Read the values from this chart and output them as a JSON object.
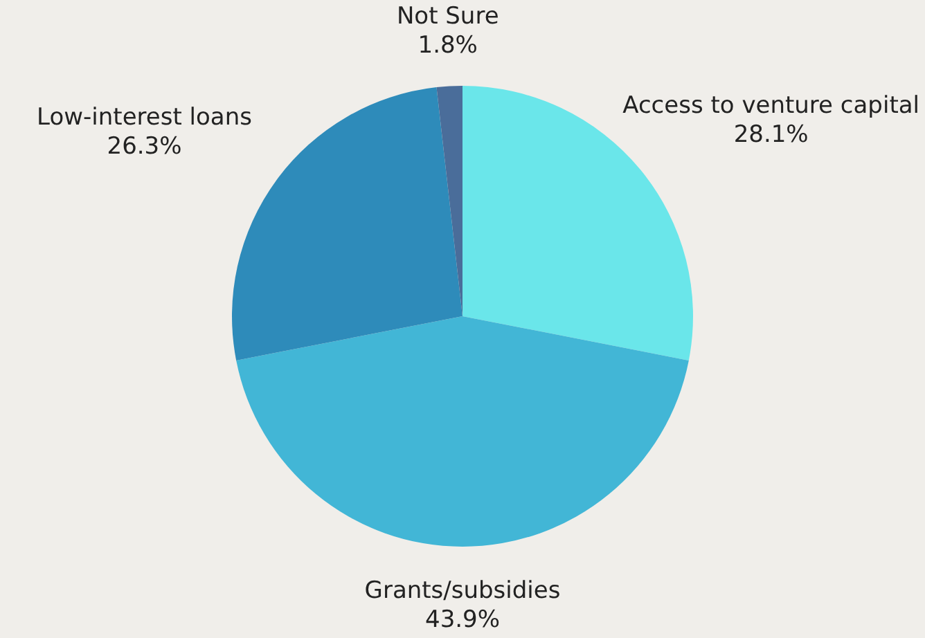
{
  "chart_data": {
    "type": "pie",
    "categories": [
      "Access to venture capital",
      "Grants/subsidies",
      "Low-interest loans",
      "Not Sure"
    ],
    "values": [
      28.1,
      43.9,
      26.3,
      1.8
    ],
    "colors": [
      "#6ae6ea",
      "#42b6d6",
      "#2e8bba",
      "#4a6d9a"
    ],
    "value_labels": [
      "28.1%",
      "43.9%",
      "26.3%",
      "1.8%"
    ],
    "legend": false
  }
}
